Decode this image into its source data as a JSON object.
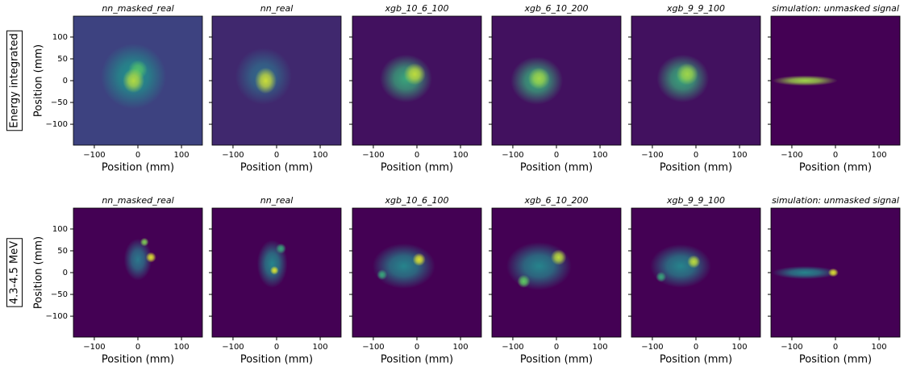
{
  "row_labels": [
    "Energy integrated",
    "4.3-4.5 MeV"
  ],
  "chart_data": [
    {
      "type": "heatmap",
      "title": "nn_masked_real",
      "xlabel": "Position (mm)",
      "ylabel": "Position (mm)",
      "xlim": [
        -148,
        148
      ],
      "ylim": [
        -148,
        148
      ],
      "xticks": [
        {
          "value": -100,
          "label": "−100"
        },
        0,
        100
      ],
      "yticks": [
        {
          "value": -100,
          "label": "−100"
        },
        {
          "value": -50,
          "label": "−50"
        },
        0,
        50,
        100
      ],
      "background": 0.2,
      "blobs": [
        {
          "x": -10,
          "y": 10,
          "rx": 75,
          "ry": 75,
          "intensity": 0.5
        },
        {
          "x": 0,
          "y": 25,
          "rx": 22,
          "ry": 22,
          "intensity": 0.7
        },
        {
          "x": -10,
          "y": 0,
          "rx": 25,
          "ry": 28,
          "intensity": 0.88
        }
      ]
    },
    {
      "type": "heatmap",
      "title": "nn_real",
      "xlabel": "Position (mm)",
      "xlim": [
        -148,
        148
      ],
      "ylim": [
        -148,
        148
      ],
      "xticks": [
        {
          "value": -100,
          "label": "−100"
        },
        0,
        100
      ],
      "yticks": [
        -100,
        -50,
        0,
        50,
        100
      ],
      "background": 0.12,
      "blobs": [
        {
          "x": -30,
          "y": 10,
          "rx": 65,
          "ry": 65,
          "intensity": 0.35
        },
        {
          "x": -25,
          "y": 0,
          "rx": 25,
          "ry": 30,
          "intensity": 0.92
        }
      ]
    },
    {
      "type": "heatmap",
      "title": "xgb_10_6_100",
      "xlabel": "Position (mm)",
      "xlim": [
        -148,
        148
      ],
      "ylim": [
        -148,
        148
      ],
      "xticks": [
        {
          "value": -100,
          "label": "−100"
        },
        0,
        100
      ],
      "yticks": [
        -100,
        -50,
        0,
        50,
        100
      ],
      "background": 0.05,
      "blobs": [
        {
          "x": -25,
          "y": 5,
          "rx": 60,
          "ry": 55,
          "intensity": 0.6
        },
        {
          "x": -5,
          "y": 15,
          "rx": 25,
          "ry": 25,
          "intensity": 0.9
        }
      ]
    },
    {
      "type": "heatmap",
      "title": "xgb_6_10_200",
      "xlabel": "Position (mm)",
      "xlim": [
        -148,
        148
      ],
      "ylim": [
        -148,
        148
      ],
      "xticks": [
        {
          "value": -100,
          "label": "−100"
        },
        0,
        100
      ],
      "yticks": [
        -100,
        -50,
        0,
        50,
        100
      ],
      "background": 0.05,
      "blobs": [
        {
          "x": -45,
          "y": 0,
          "rx": 60,
          "ry": 55,
          "intensity": 0.6
        },
        {
          "x": -40,
          "y": 5,
          "rx": 25,
          "ry": 25,
          "intensity": 0.85
        }
      ]
    },
    {
      "type": "heatmap",
      "title": "xgb_9_9_100",
      "xlabel": "Position (mm)",
      "xlim": [
        -148,
        148
      ],
      "ylim": [
        -148,
        148
      ],
      "xticks": [
        {
          "value": -100,
          "label": "−100"
        },
        0,
        100
      ],
      "yticks": [
        -100,
        -50,
        0,
        50,
        100
      ],
      "background": 0.05,
      "blobs": [
        {
          "x": -30,
          "y": 5,
          "rx": 60,
          "ry": 55,
          "intensity": 0.6
        },
        {
          "x": -20,
          "y": 15,
          "rx": 25,
          "ry": 25,
          "intensity": 0.85
        }
      ]
    },
    {
      "type": "heatmap",
      "title": "simulation: unmasked signal",
      "xlabel": "Position (mm)",
      "xlim": [
        -148,
        148
      ],
      "ylim": [
        -148,
        148
      ],
      "xticks": [
        {
          "value": -100,
          "label": "−100"
        },
        0,
        100
      ],
      "yticks": [
        -100,
        -50,
        0,
        50,
        100
      ],
      "background": 0,
      "blobs": [
        {
          "x": -70,
          "y": 0,
          "rx": 75,
          "ry": 12,
          "intensity": 0.85
        }
      ]
    },
    {
      "type": "heatmap",
      "title": "nn_masked_real",
      "xlabel": "Position (mm)",
      "ylabel": "Position (mm)",
      "xlim": [
        -148,
        148
      ],
      "ylim": [
        -148,
        148
      ],
      "xticks": [
        {
          "value": -100,
          "label": "−100"
        },
        0,
        100
      ],
      "yticks": [
        {
          "value": -100,
          "label": "−100"
        },
        {
          "value": -50,
          "label": "−50"
        },
        0,
        50,
        100
      ],
      "background": 0,
      "blobs": [
        {
          "x": 0,
          "y": 30,
          "rx": 32,
          "ry": 48,
          "intensity": 0.4
        },
        {
          "x": 15,
          "y": 70,
          "rx": 10,
          "ry": 10,
          "intensity": 0.8
        },
        {
          "x": 30,
          "y": 35,
          "rx": 12,
          "ry": 12,
          "intensity": 0.95
        }
      ]
    },
    {
      "type": "heatmap",
      "title": "nn_real",
      "xlabel": "Position (mm)",
      "xlim": [
        -148,
        148
      ],
      "ylim": [
        -148,
        148
      ],
      "xticks": [
        {
          "value": -100,
          "label": "−100"
        },
        0,
        100
      ],
      "yticks": [
        -100,
        -50,
        0,
        50,
        100
      ],
      "background": 0,
      "blobs": [
        {
          "x": -10,
          "y": 20,
          "rx": 35,
          "ry": 55,
          "intensity": 0.45
        },
        {
          "x": 10,
          "y": 55,
          "rx": 12,
          "ry": 12,
          "intensity": 0.6
        },
        {
          "x": -5,
          "y": 5,
          "rx": 10,
          "ry": 10,
          "intensity": 0.95
        }
      ]
    },
    {
      "type": "heatmap",
      "title": "xgb_10_6_100",
      "xlabel": "Position (mm)",
      "xlim": [
        -148,
        148
      ],
      "ylim": [
        -148,
        148
      ],
      "xticks": [
        {
          "value": -100,
          "label": "−100"
        },
        0,
        100
      ],
      "yticks": [
        -100,
        -50,
        0,
        50,
        100
      ],
      "background": 0,
      "blobs": [
        {
          "x": -30,
          "y": 15,
          "rx": 72,
          "ry": 52,
          "intensity": 0.45
        },
        {
          "x": -80,
          "y": -5,
          "rx": 12,
          "ry": 12,
          "intensity": 0.6
        },
        {
          "x": 5,
          "y": 30,
          "rx": 15,
          "ry": 15,
          "intensity": 0.95
        }
      ]
    },
    {
      "type": "heatmap",
      "title": "xgb_6_10_200",
      "xlabel": "Position (mm)",
      "xlim": [
        -148,
        148
      ],
      "ylim": [
        -148,
        148
      ],
      "xticks": [
        {
          "value": -100,
          "label": "−100"
        },
        0,
        100
      ],
      "yticks": [
        -100,
        -50,
        0,
        50,
        100
      ],
      "background": 0,
      "blobs": [
        {
          "x": -40,
          "y": 15,
          "rx": 75,
          "ry": 55,
          "intensity": 0.45
        },
        {
          "x": -75,
          "y": -20,
          "rx": 15,
          "ry": 15,
          "intensity": 0.75
        },
        {
          "x": 5,
          "y": 35,
          "rx": 18,
          "ry": 18,
          "intensity": 0.9
        }
      ]
    },
    {
      "type": "heatmap",
      "title": "xgb_9_9_100",
      "xlabel": "Position (mm)",
      "xlim": [
        -148,
        148
      ],
      "ylim": [
        -148,
        148
      ],
      "xticks": [
        {
          "value": -100,
          "label": "−100"
        },
        0,
        100
      ],
      "yticks": [
        -100,
        -50,
        0,
        50,
        100
      ],
      "background": 0,
      "blobs": [
        {
          "x": -35,
          "y": 15,
          "rx": 70,
          "ry": 50,
          "intensity": 0.45
        },
        {
          "x": -80,
          "y": -10,
          "rx": 12,
          "ry": 12,
          "intensity": 0.6
        },
        {
          "x": -5,
          "y": 25,
          "rx": 15,
          "ry": 15,
          "intensity": 0.9
        }
      ]
    },
    {
      "type": "heatmap",
      "title": "simulation: unmasked signal",
      "xlabel": "Position (mm)",
      "xlim": [
        -148,
        148
      ],
      "ylim": [
        -148,
        148
      ],
      "xticks": [
        {
          "value": -100,
          "label": "−100"
        },
        0,
        100
      ],
      "yticks": [
        -100,
        -50,
        0,
        50,
        100
      ],
      "background": 0,
      "blobs": [
        {
          "x": -70,
          "y": 0,
          "rx": 75,
          "ry": 15,
          "intensity": 0.45
        },
        {
          "x": -5,
          "y": 0,
          "rx": 12,
          "ry": 10,
          "intensity": 0.95
        }
      ]
    }
  ]
}
